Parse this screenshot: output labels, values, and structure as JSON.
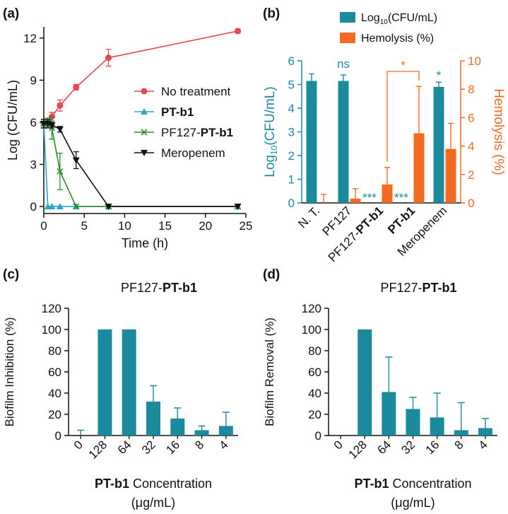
{
  "colors": {
    "teal": "#1b8a9c",
    "orange": "#f26b21",
    "red": "#e8474e",
    "cyan": "#2aa7c4",
    "green": "#2e8b2e",
    "black": "#111111"
  },
  "panel_labels": [
    "(a)",
    "(b)",
    "(c)",
    "(d)"
  ],
  "chart_data": [
    {
      "type": "line",
      "panel": "(a)",
      "xlabel": "Time (h)",
      "ylabel": "Log (CFU/mL)",
      "xlim": [
        0,
        25
      ],
      "ylim": [
        -0.5,
        12.8
      ],
      "xticks": [
        "0",
        "5",
        "10",
        "15",
        "20",
        "25"
      ],
      "yticks": [
        "0",
        "3",
        "6",
        "9",
        "12"
      ],
      "series": [
        {
          "name": "No treatment",
          "color": "#e8474e",
          "marker": "circle",
          "x": [
            0,
            0.5,
            1,
            2,
            4,
            8,
            24
          ],
          "y": [
            5.9,
            6.0,
            6.4,
            7.2,
            8.5,
            10.6,
            12.5
          ],
          "err": [
            0.3,
            0.3,
            0.3,
            0.4,
            0.2,
            0.6,
            0.15
          ]
        },
        {
          "name": "PT-b1",
          "bold": true,
          "color": "#2aa7c4",
          "marker": "triangle-up",
          "x": [
            0,
            0.5,
            1,
            2,
            4,
            8,
            24
          ],
          "y": [
            5.9,
            0,
            0,
            0,
            0,
            0,
            0
          ],
          "err": [
            0.3,
            0,
            0,
            0,
            0,
            0,
            0
          ]
        },
        {
          "name": "PF127-PT-b1",
          "prefix": "PF127-",
          "bold_part": "PT-b1",
          "color": "#2e8b2e",
          "marker": "x",
          "x": [
            0,
            0.5,
            1,
            2,
            4,
            8,
            24
          ],
          "y": [
            5.9,
            6.0,
            5.6,
            2.5,
            0,
            0,
            0
          ],
          "err": [
            0.3,
            0.3,
            0.8,
            1.3,
            0,
            0,
            0
          ]
        },
        {
          "name": "Meropenem",
          "color": "#111111",
          "marker": "triangle-down",
          "x": [
            0,
            0.5,
            1,
            2,
            4,
            8,
            24
          ],
          "y": [
            5.9,
            5.9,
            5.8,
            5.5,
            3.3,
            0,
            0
          ],
          "err": [
            0.3,
            0.3,
            0.2,
            0.2,
            0.6,
            0,
            0
          ]
        }
      ],
      "legend_position": "right"
    },
    {
      "type": "bar",
      "panel": "(b)",
      "categories": [
        {
          "plain": "N. T.",
          "bold": ""
        },
        {
          "plain": "PF127",
          "bold": ""
        },
        {
          "plain": "PF127-",
          "bold": "PT-b1"
        },
        {
          "plain": "",
          "bold": "PT-b1"
        },
        {
          "plain": "Meropenem",
          "bold": ""
        }
      ],
      "ylabel_left": "Log10(CFU/mL)",
      "ylabel_left_parts": [
        "Log",
        "10",
        "(CFU/mL)"
      ],
      "ylabel_right": "Hemolysis (%)",
      "ylim_left": [
        0,
        6
      ],
      "ylim_right": [
        0,
        10
      ],
      "yticks_left": [
        "0",
        "1",
        "2",
        "3",
        "4",
        "5",
        "6"
      ],
      "yticks_right": [
        "0",
        "2",
        "4",
        "6",
        "8",
        "10"
      ],
      "series": [
        {
          "name": "Log10(CFU/mL)",
          "legend_parts": [
            "Log",
            "10",
            "(CFU/mL)"
          ],
          "axis": "left",
          "color": "#1b8a9c",
          "values": [
            5.15,
            5.15,
            0,
            0,
            4.9
          ],
          "err": [
            0.3,
            0.25,
            0,
            0,
            0.2
          ]
        },
        {
          "name": "Hemolysis (%)",
          "axis": "right",
          "color": "#f26b21",
          "values": [
            0,
            0.3,
            1.3,
            4.9,
            3.8
          ],
          "err": [
            0.6,
            0.7,
            1.2,
            3.3,
            1.8
          ]
        }
      ],
      "annotations": [
        {
          "text": "ns",
          "category": 1,
          "color": "#1b8a9c"
        },
        {
          "text": "***",
          "category": 2,
          "color": "#1b8a9c"
        },
        {
          "text": "***",
          "category": 3,
          "color": "#1b8a9c"
        },
        {
          "text": "*",
          "category": 4,
          "color": "#1b8a9c"
        },
        {
          "text": "*",
          "between": [
            2,
            3
          ],
          "color": "#f26b21"
        }
      ],
      "legend_position": "top"
    },
    {
      "type": "bar",
      "panel": "(c)",
      "title_plain": "PF127-",
      "title_bold": "PT-b1",
      "ylabel": "Biofilm Inhibition (%)",
      "xlabel_bold": "PT-b1",
      "xlabel_plain": " Concentration",
      "xlabel_unit": "(μg/mL)",
      "categories": [
        "0",
        "128",
        "64",
        "32",
        "16",
        "8",
        "4"
      ],
      "values": [
        0,
        100,
        100,
        32,
        16,
        5,
        9
      ],
      "err": [
        5,
        0,
        0,
        15,
        10,
        4,
        13
      ],
      "ylim": [
        0,
        120
      ],
      "yticks": [
        "0",
        "20",
        "40",
        "60",
        "80",
        "100",
        "120"
      ],
      "color": "#1b8a9c"
    },
    {
      "type": "bar",
      "panel": "(d)",
      "title_plain": "PF127-",
      "title_bold": "PT-b1",
      "ylabel": "Biofilm Removal (%)",
      "xlabel_bold": "PT-b1",
      "xlabel_plain": " Concentration",
      "xlabel_unit": "(μg/mL)",
      "categories": [
        "0",
        "128",
        "64",
        "32",
        "16",
        "8",
        "4"
      ],
      "values": [
        0,
        100,
        41,
        25,
        17,
        5,
        7
      ],
      "err": [
        0,
        0,
        33,
        11,
        23,
        26,
        9
      ],
      "ylim": [
        0,
        120
      ],
      "yticks": [
        "0",
        "20",
        "40",
        "60",
        "80",
        "100",
        "120"
      ],
      "color": "#1b8a9c"
    }
  ]
}
